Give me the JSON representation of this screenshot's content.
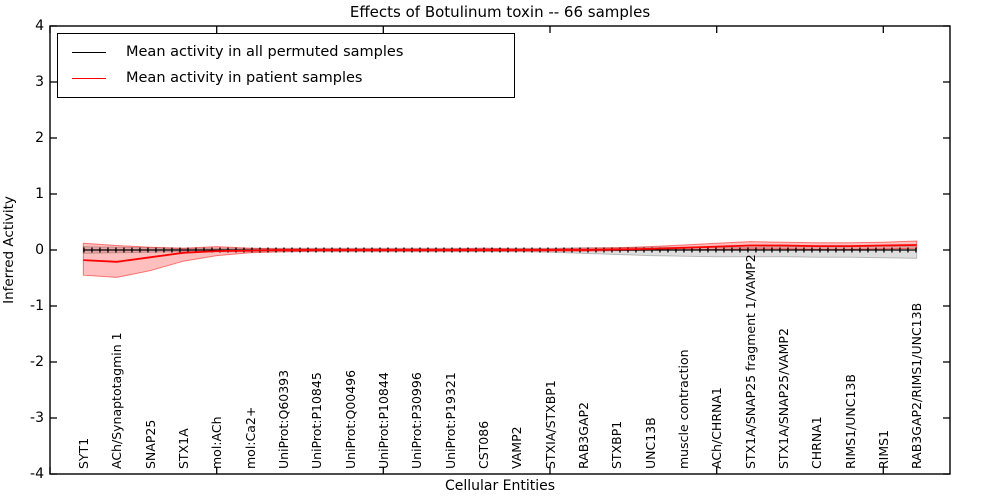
{
  "chart_data": {
    "type": "line",
    "title": "Effects of Botulinum toxin -- 66 samples",
    "xlabel": "Cellular Entities",
    "ylabel": "Inferred Activity",
    "ylim": [
      -4,
      4
    ],
    "yticks": [
      "4",
      "3",
      "2",
      "1",
      "0",
      "-1",
      "-2",
      "-3",
      "-4"
    ],
    "ytick_values": [
      4,
      3,
      2,
      1,
      0,
      -1,
      -2,
      -3,
      -4
    ],
    "xlim": [
      0,
      27
    ],
    "xtick_positions": [
      0,
      5,
      10,
      15,
      20,
      25
    ],
    "grid": false,
    "legend_position": "upper left",
    "categories": [
      "SYT1",
      "ACh/Synaptotagmin 1",
      "SNAP25",
      "STX1A",
      "mol:ACh",
      "mol:Ca2+",
      "UniProt:Q60393",
      "UniProt:P10845",
      "UniProt:Q00496",
      "UniProt:P10844",
      "UniProt:P30996",
      "UniProt:P19321",
      "CST086",
      "VAMP2",
      "STXIA/STXBP1",
      "RAB3GAP2",
      "STXBP1",
      "UNC13B",
      "muscle contraction",
      "ACh/CHRNA1",
      "STX1A/SNAP25 fragment 1/VAMP2",
      "STX1A/SNAP25/VAMP2",
      "CHRNA1",
      "RIMS1/UNC13B",
      "RIMS1",
      "RAB3GAP2/RIMS1/UNC13B"
    ],
    "series": [
      {
        "name": "Mean activity in all permuted samples",
        "color": "#000000",
        "line_style": "solid with tick markers",
        "band_color": "rgba(0,0,0,0.13)",
        "band_edge_color": "rgba(0,0,0,0.22)",
        "values": [
          0,
          0,
          0,
          0,
          0,
          0,
          0,
          0,
          0,
          0,
          0,
          0,
          0,
          0,
          0,
          0,
          0,
          0,
          0,
          0,
          0,
          0,
          0,
          0,
          0,
          0
        ],
        "band_upper": [
          0.06,
          0.05,
          0.04,
          0.03,
          0.03,
          0.03,
          0.03,
          0.03,
          0.03,
          0.03,
          0.03,
          0.03,
          0.03,
          0.03,
          0.03,
          0.04,
          0.04,
          0.05,
          0.05,
          0.05,
          0.05,
          0.06,
          0.06,
          0.06,
          0.07,
          0.07
        ],
        "band_lower": [
          -0.06,
          -0.05,
          -0.04,
          -0.03,
          -0.03,
          -0.03,
          -0.03,
          -0.03,
          -0.03,
          -0.03,
          -0.03,
          -0.03,
          -0.03,
          -0.03,
          -0.04,
          -0.06,
          -0.08,
          -0.1,
          -0.11,
          -0.12,
          -0.12,
          -0.12,
          -0.13,
          -0.13,
          -0.14,
          -0.15
        ]
      },
      {
        "name": "Mean activity in patient samples",
        "color": "#ff0000",
        "line_style": "solid",
        "band_color": "rgba(255,0,0,0.25)",
        "band_edge_color": "rgba(255,0,0,0.5)",
        "values": [
          -0.18,
          -0.21,
          -0.13,
          -0.05,
          -0.02,
          -0.01,
          0,
          0,
          0,
          0,
          0,
          0,
          0,
          0,
          0,
          0,
          0.01,
          0.02,
          0.04,
          0.06,
          0.08,
          0.08,
          0.07,
          0.07,
          0.08,
          0.09
        ],
        "band_upper": [
          0.12,
          0.08,
          0.05,
          0.03,
          0.06,
          0.03,
          0.02,
          0.02,
          0.02,
          0.02,
          0.02,
          0.02,
          0.03,
          0.02,
          0.02,
          0.03,
          0.04,
          0.06,
          0.09,
          0.12,
          0.15,
          0.14,
          0.13,
          0.13,
          0.14,
          0.16
        ],
        "band_lower": [
          -0.45,
          -0.49,
          -0.37,
          -0.2,
          -0.1,
          -0.05,
          -0.03,
          -0.02,
          -0.02,
          -0.02,
          -0.02,
          -0.02,
          -0.02,
          -0.02,
          -0.02,
          -0.02,
          -0.01,
          0,
          0,
          0.01,
          0.02,
          0.02,
          0.01,
          0.01,
          0.02,
          0.03
        ]
      }
    ]
  }
}
